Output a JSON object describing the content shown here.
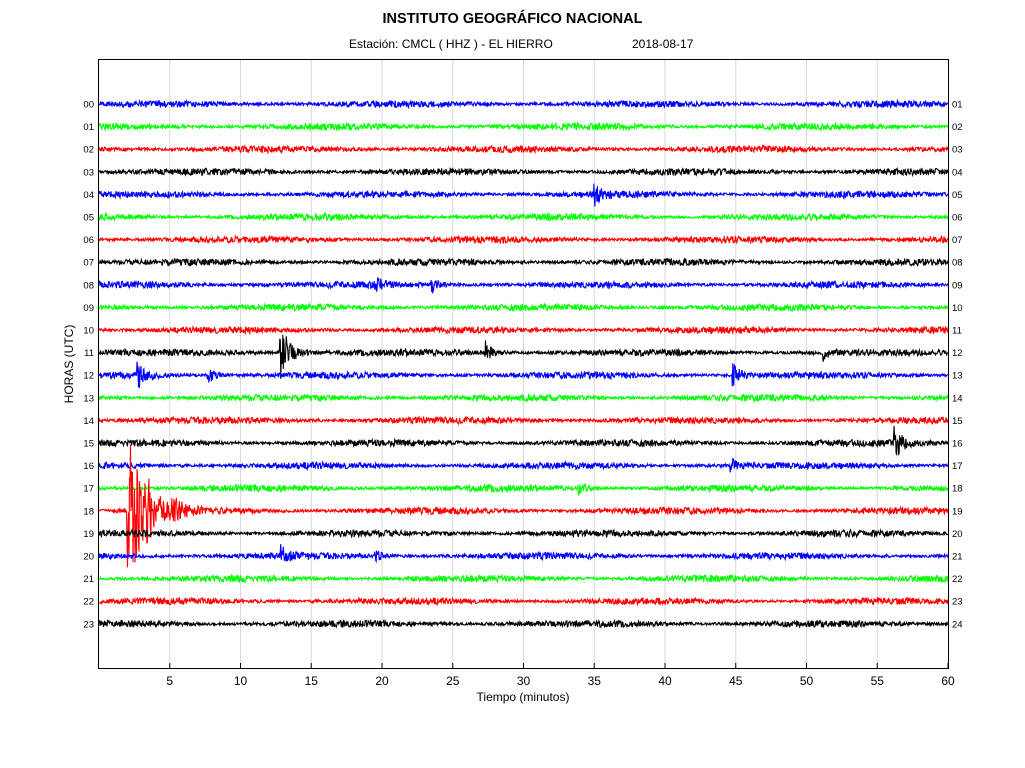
{
  "header": {
    "title": "INSTITUTO GEOGRÁFICO NACIONAL",
    "station_text": "Estación:  CMCL ( HHZ ) - EL HIERRO",
    "date": "2018-08-17"
  },
  "chart_data": {
    "type": "line",
    "title": "INSTITUTO GEOGRÁFICO NACIONAL",
    "subtitle": "Estación:  CMCL ( HHZ ) - EL HIERRO",
    "date": "2018-08-17",
    "xlabel": "Tiempo (minutos)",
    "ylabel": "HORAS (UTC)",
    "xlim": [
      0,
      60
    ],
    "x_ticks": [
      5,
      10,
      15,
      20,
      25,
      30,
      35,
      40,
      45,
      50,
      55,
      60
    ],
    "grid": true,
    "hours_left": [
      "00",
      "01",
      "02",
      "03",
      "04",
      "05",
      "06",
      "07",
      "08",
      "09",
      "10",
      "11",
      "12",
      "13",
      "14",
      "15",
      "16",
      "17",
      "18",
      "19",
      "20",
      "21",
      "22",
      "23"
    ],
    "hours_right": [
      "01",
      "02",
      "03",
      "04",
      "05",
      "06",
      "07",
      "08",
      "09",
      "10",
      "11",
      "12",
      "13",
      "14",
      "15",
      "16",
      "17",
      "18",
      "19",
      "20",
      "21",
      "22",
      "23",
      "24"
    ],
    "trace_colors": [
      "#0000ff",
      "#00ff00",
      "#ff0000",
      "#000000"
    ],
    "events": [
      {
        "hour": 4,
        "minute": 35.0,
        "amp": 0.25
      },
      {
        "hour": 8,
        "minute": 19.5,
        "amp": 0.2
      },
      {
        "hour": 8,
        "minute": 23.5,
        "amp": 0.2
      },
      {
        "hour": 11,
        "minute": 12.8,
        "amp": 0.75
      },
      {
        "hour": 11,
        "minute": 27.3,
        "amp": 0.3
      },
      {
        "hour": 11,
        "minute": 51.2,
        "amp": 0.2
      },
      {
        "hour": 12,
        "minute": 2.7,
        "amp": 0.35
      },
      {
        "hour": 12,
        "minute": 7.7,
        "amp": 0.2
      },
      {
        "hour": 12,
        "minute": 44.8,
        "amp": 0.3
      },
      {
        "hour": 15,
        "minute": 56.2,
        "amp": 0.4
      },
      {
        "hour": 16,
        "minute": 44.6,
        "amp": 0.2
      },
      {
        "hour": 17,
        "minute": 33.8,
        "amp": 0.2
      },
      {
        "hour": 18,
        "minute": 2.0,
        "amp": 2.0
      },
      {
        "hour": 18,
        "minute": 3.3,
        "amp": 0.35
      },
      {
        "hour": 18,
        "minute": 5.2,
        "amp": 0.3
      },
      {
        "hour": 20,
        "minute": 12.8,
        "amp": 0.25
      },
      {
        "hour": 20,
        "minute": 19.5,
        "amp": 0.15
      }
    ]
  }
}
